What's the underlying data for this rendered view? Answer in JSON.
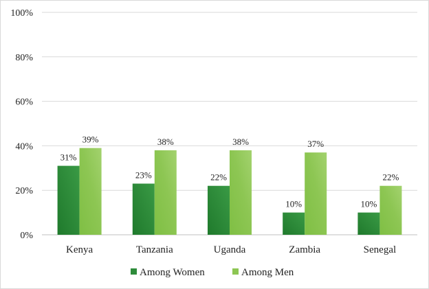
{
  "chart_data": {
    "type": "bar",
    "categories": [
      "Kenya",
      "Tanzania",
      "Uganda",
      "Zambia",
      "Senegal"
    ],
    "series": [
      {
        "name": "Among Women",
        "values": [
          31,
          23,
          22,
          10,
          10
        ],
        "labels": [
          "31%",
          "23%",
          "22%",
          "10%",
          "10%"
        ],
        "color": "#2e8b3a"
      },
      {
        "name": "Among Men",
        "values": [
          39,
          38,
          38,
          37,
          22
        ],
        "labels": [
          "39%",
          "38%",
          "38%",
          "37%",
          "22%"
        ],
        "color": "#8dc653"
      }
    ],
    "ylim": [
      0,
      100
    ],
    "yticks": [
      0,
      20,
      40,
      60,
      80,
      100
    ],
    "ytick_labels": [
      "0%",
      "20%",
      "40%",
      "60%",
      "80%",
      "100%"
    ],
    "grid": true,
    "legend": "bottom",
    "title": "",
    "xlabel": "",
    "ylabel": ""
  }
}
